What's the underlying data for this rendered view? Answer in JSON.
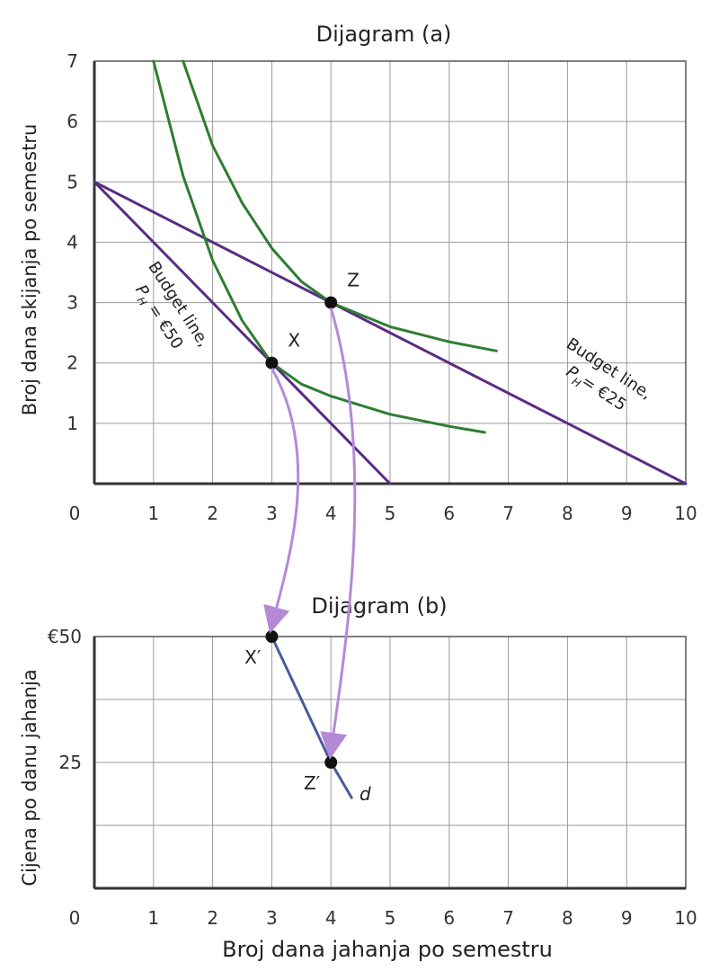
{
  "chart_data": [
    {
      "id": "a",
      "type": "line",
      "title": "Dijagram (a)",
      "xlabel": "",
      "ylabel": "Broj dana skijanja po semestru",
      "xlim": [
        0,
        10
      ],
      "ylim": [
        0,
        7
      ],
      "grid": true,
      "x_ticks": [
        "0",
        "1",
        "2",
        "3",
        "4",
        "5",
        "6",
        "7",
        "8",
        "9",
        "10"
      ],
      "y_ticks": [
        "1",
        "2",
        "3",
        "4",
        "5",
        "6",
        "7"
      ],
      "series": [
        {
          "color": "#5b2c83",
          "points": [
            [
              0,
              5
            ],
            [
              5,
              0
            ]
          ]
        },
        {
          "color": "#5b2c83",
          "points": [
            [
              0,
              5
            ],
            [
              10,
              0
            ]
          ]
        },
        {
          "color": "#2e7d32",
          "points": [
            [
              1.0,
              7.0
            ],
            [
              1.5,
              5.1
            ],
            [
              2.0,
              3.7
            ],
            [
              2.5,
              2.7
            ],
            [
              3.0,
              2.0
            ],
            [
              3.5,
              1.65
            ],
            [
              4.0,
              1.45
            ],
            [
              5.0,
              1.15
            ],
            [
              6.0,
              0.95
            ],
            [
              6.6,
              0.85
            ]
          ]
        },
        {
          "color": "#2e7d32",
          "points": [
            [
              1.5,
              7.0
            ],
            [
              2.0,
              5.6
            ],
            [
              2.5,
              4.65
            ],
            [
              3.0,
              3.9
            ],
            [
              3.5,
              3.35
            ],
            [
              4.0,
              3.0
            ],
            [
              5.0,
              2.6
            ],
            [
              6.0,
              2.35
            ],
            [
              6.8,
              2.2
            ]
          ]
        }
      ],
      "points": [
        {
          "label": "X",
          "x": 3,
          "y": 2
        },
        {
          "label": "Z",
          "x": 4,
          "y": 3
        }
      ],
      "annotations": {
        "budget_50": {
          "line1": "Budget line,",
          "line2": "P",
          "sub": "H",
          "line3": " = €50"
        },
        "budget_25": {
          "line1": "Budget line,",
          "line2": "P",
          "sub": "H",
          "line3": "= €25"
        }
      }
    },
    {
      "id": "b",
      "type": "line",
      "title": "Dijagram (b)",
      "xlabel": "Broj dana jahanja po semestru",
      "ylabel": "Cijena po danu jahanja",
      "xlim": [
        0,
        10
      ],
      "ylim": [
        0,
        50
      ],
      "grid": true,
      "x_ticks": [
        "0",
        "1",
        "2",
        "3",
        "4",
        "5",
        "6",
        "7",
        "8",
        "9",
        "10"
      ],
      "y_tick_values": [
        25,
        50
      ],
      "y_ticks": [
        "25",
        "€50"
      ],
      "series": [
        {
          "name": "d",
          "color": "#4a5a9a",
          "points": [
            [
              3,
              50
            ],
            [
              4,
              25
            ],
            [
              4.35,
              18
            ]
          ]
        }
      ],
      "points": [
        {
          "label": "X′",
          "x": 3,
          "y": 50
        },
        {
          "label": "Z′",
          "x": 4,
          "y": 25
        }
      ]
    }
  ],
  "colors": {
    "budget": "#5b2c83",
    "indifference": "#2e7d32",
    "demand": "#4a5a9a",
    "arrow": "#b48ad6",
    "grid": "#9a9a9a",
    "axis": "#333333"
  }
}
